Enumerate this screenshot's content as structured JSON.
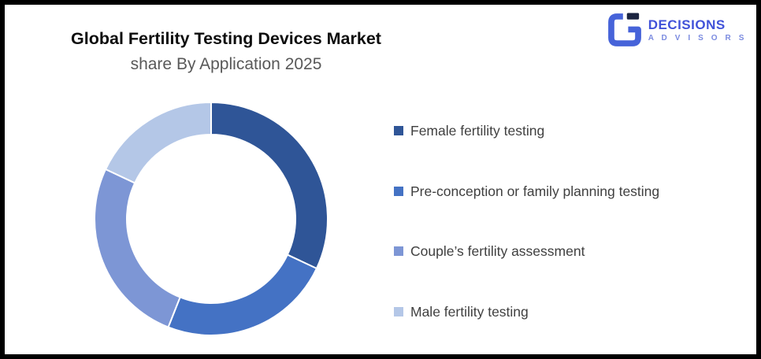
{
  "header": {
    "title": "Global Fertility Testing Devices Market",
    "subtitle": "share By Application 2025"
  },
  "logo": {
    "name": "DECISIONS",
    "tagline": "A D V I S O R S",
    "brand_color": "#4663d9",
    "mark_navy": "#1b2440",
    "name_color": "#4152d9",
    "tagline_color": "#7b8be0"
  },
  "chart_data": {
    "type": "pie",
    "subtype": "donut",
    "title": "Global Fertility Testing Devices Market share By Application 2025",
    "unit": "%",
    "categories": [
      "Female fertility testing",
      "Pre-conception or family planning testing",
      "Couple’s fertility assessment",
      "Male fertility testing"
    ],
    "values": [
      32,
      24,
      26,
      18
    ],
    "colors": [
      "#2F5597",
      "#4472C4",
      "#7D96D5",
      "#B4C7E7"
    ],
    "start_angle_deg": 0,
    "clockwise": true,
    "inner_radius_ratio": 0.72,
    "legend_position": "right",
    "data_labels": false
  },
  "legend": {
    "items": [
      {
        "label": "Female fertility testing",
        "color": "#2F5597"
      },
      {
        "label": "Pre-conception or family planning testing",
        "color": "#4472C4"
      },
      {
        "label": "Couple’s fertility assessment",
        "color": "#7D96D5"
      },
      {
        "label": "Male fertility testing",
        "color": "#B4C7E7"
      }
    ]
  }
}
